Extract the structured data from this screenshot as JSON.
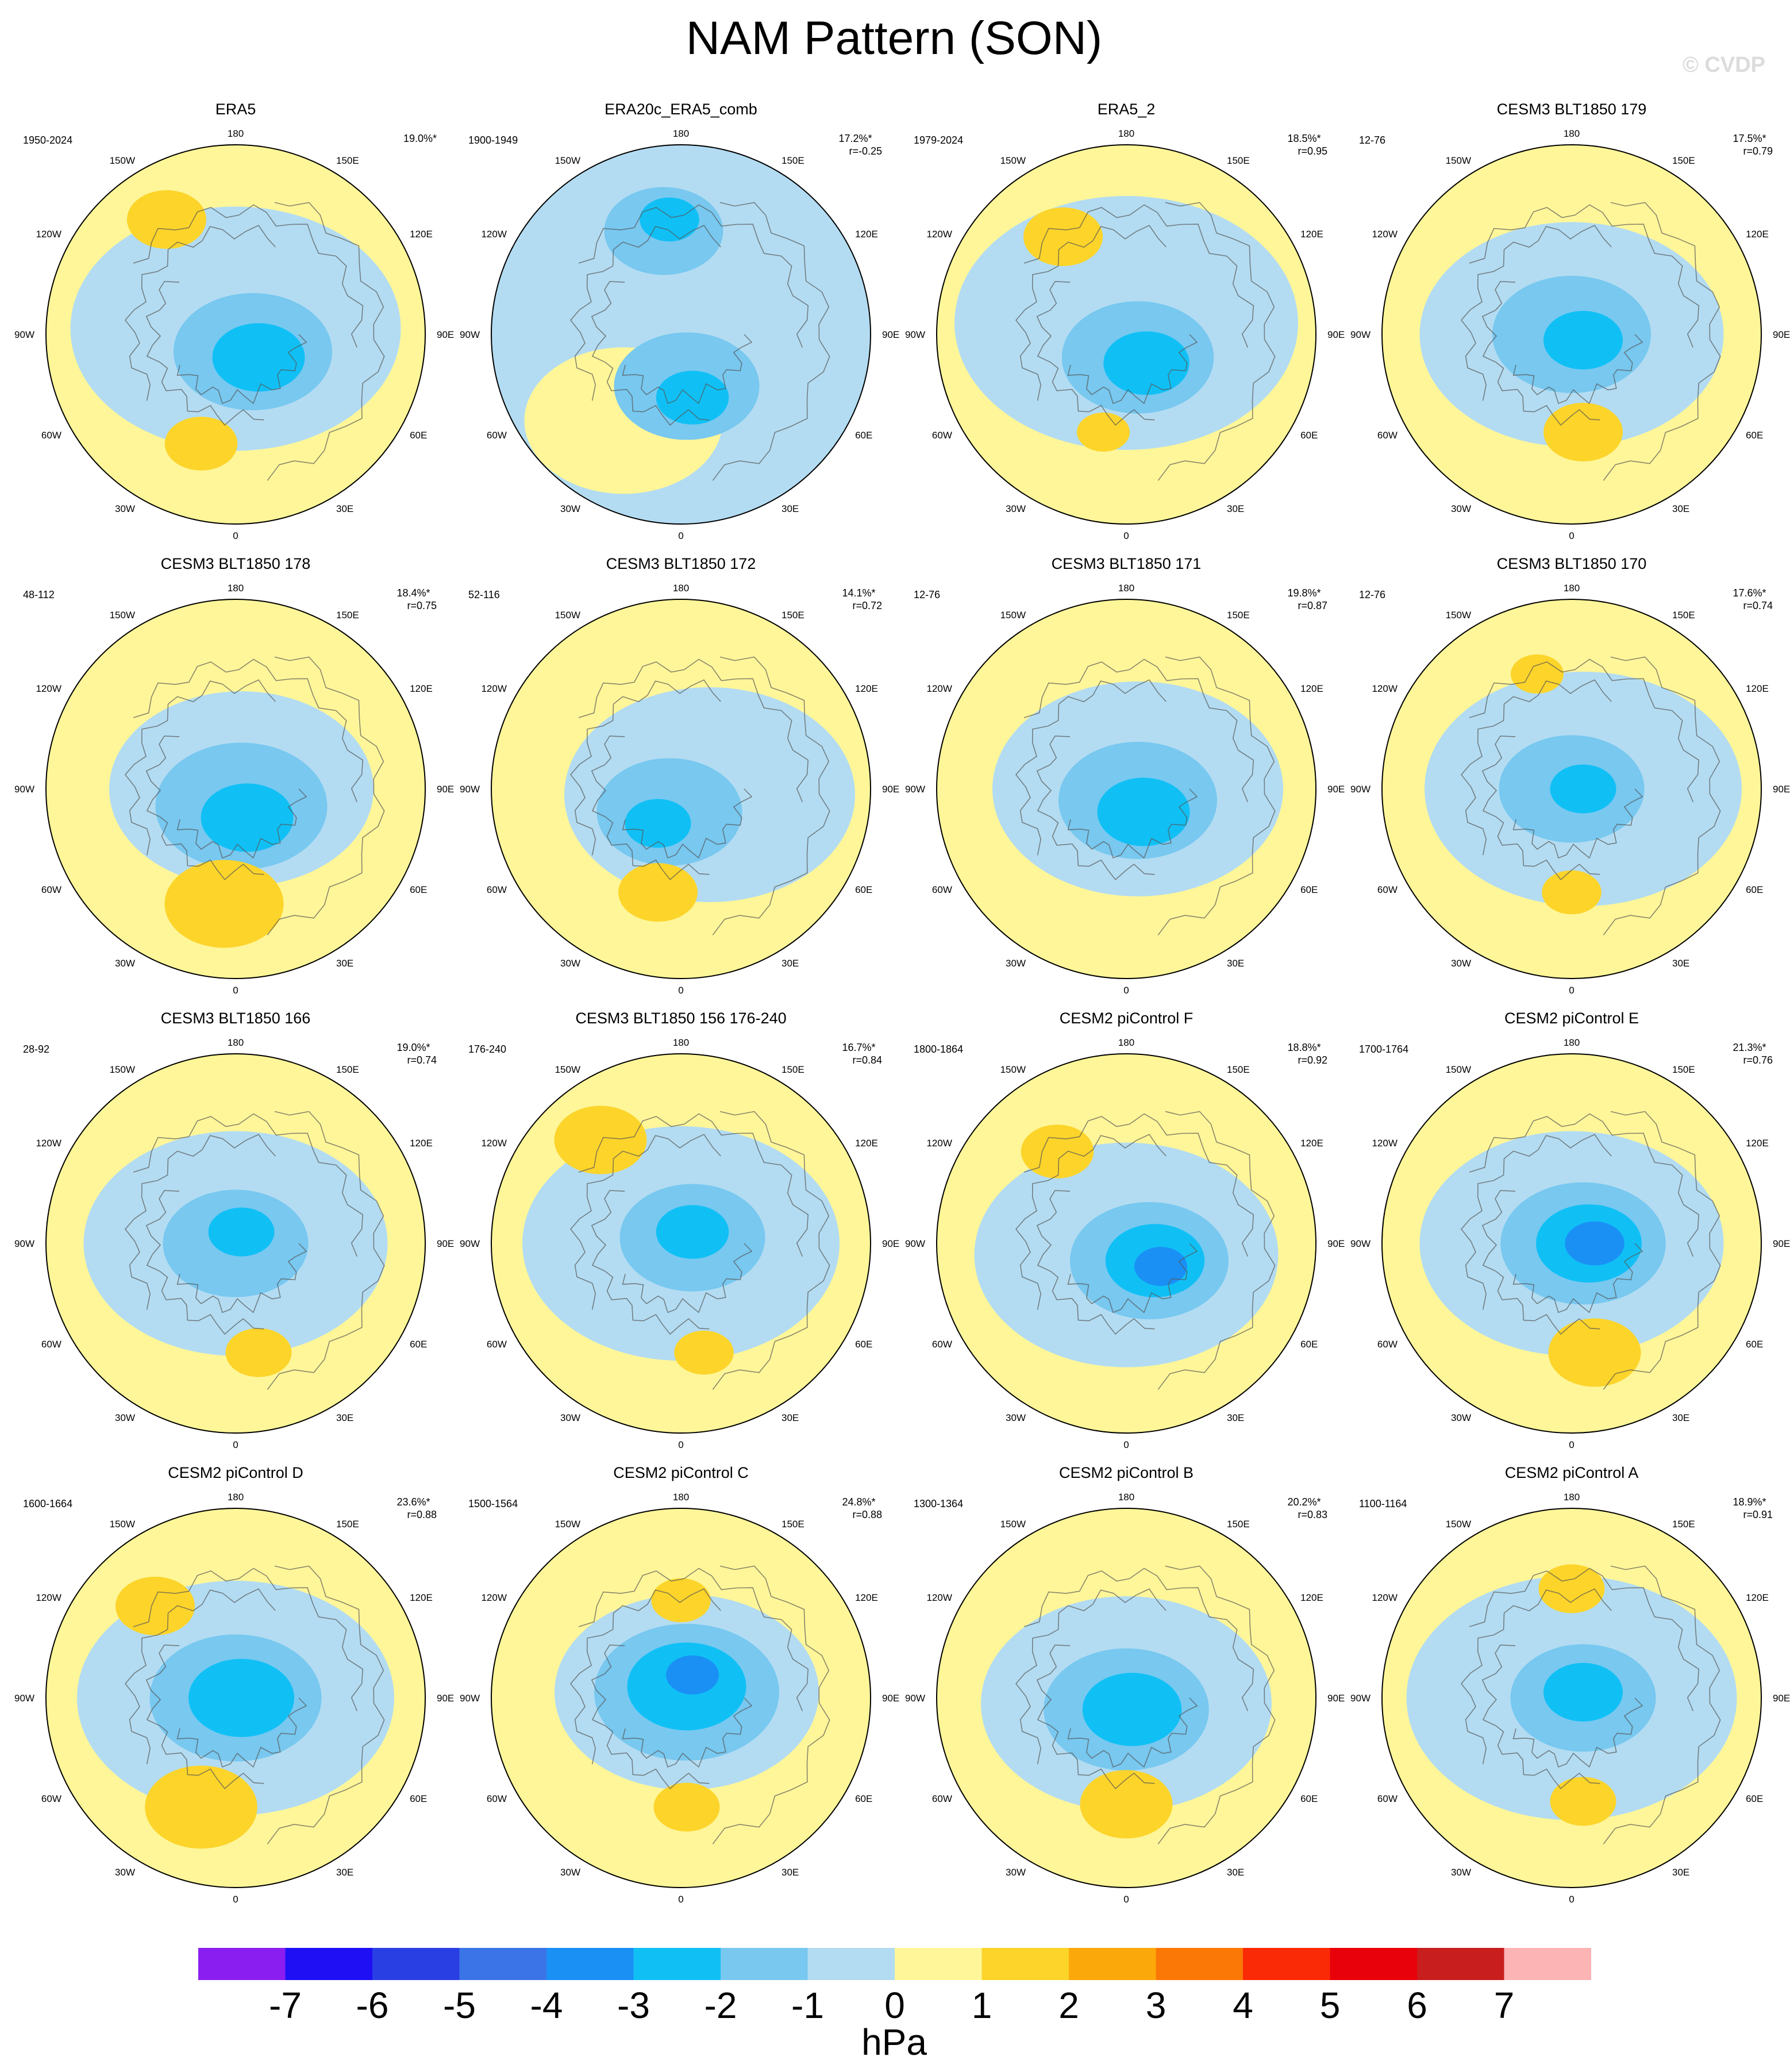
{
  "title": "NAM Pattern (SON)",
  "watermark": "© CVDP",
  "lon_labels": [
    "180",
    "150E",
    "120E",
    "90E",
    "60E",
    "30E",
    "0",
    "30W",
    "60W",
    "90W",
    "120W",
    "150W"
  ],
  "panels": [
    {
      "title": "ERA5",
      "period": "1950-2024",
      "pct": "19.0%*",
      "r": ""
    },
    {
      "title": "ERA20c_ERA5_comb",
      "period": "1900-1949",
      "pct": "17.2%*",
      "r": "r=-0.25"
    },
    {
      "title": "ERA5_2",
      "period": "1979-2024",
      "pct": "18.5%*",
      "r": "r=0.95"
    },
    {
      "title": "CESM3 BLT1850 179",
      "period": "12-76",
      "pct": "17.5%*",
      "r": "r=0.79"
    },
    {
      "title": "CESM3 BLT1850 178",
      "period": "48-112",
      "pct": "18.4%*",
      "r": "r=0.75"
    },
    {
      "title": "CESM3 BLT1850 172",
      "period": "52-116",
      "pct": "14.1%*",
      "r": "r=0.72"
    },
    {
      "title": "CESM3 BLT1850 171",
      "period": "12-76",
      "pct": "19.8%*",
      "r": "r=0.87"
    },
    {
      "title": "CESM3 BLT1850 170",
      "period": "12-76",
      "pct": "17.6%*",
      "r": "r=0.74"
    },
    {
      "title": "CESM3 BLT1850 166",
      "period": "28-92",
      "pct": "19.0%*",
      "r": "r=0.74"
    },
    {
      "title": "CESM3 BLT1850 156 176-240",
      "period": "176-240",
      "pct": "16.7%*",
      "r": "r=0.84"
    },
    {
      "title": "CESM2 piControl F",
      "period": "1800-1864",
      "pct": "18.8%*",
      "r": "r=0.92"
    },
    {
      "title": "CESM2 piControl E",
      "period": "1700-1764",
      "pct": "21.3%*",
      "r": "r=0.76"
    },
    {
      "title": "CESM2 piControl D",
      "period": "1600-1664",
      "pct": "23.6%*",
      "r": "r=0.88"
    },
    {
      "title": "CESM2 piControl C",
      "period": "1500-1564",
      "pct": "24.8%*",
      "r": "r=0.88"
    },
    {
      "title": "CESM2 piControl B",
      "period": "1300-1364",
      "pct": "20.2%*",
      "r": "r=0.83"
    },
    {
      "title": "CESM2 piControl A",
      "period": "1100-1164",
      "pct": "18.9%*",
      "r": "r=0.91"
    }
  ],
  "colorbar": {
    "units": "hPa",
    "ticks": [
      "-7",
      "-6",
      "-5",
      "-4",
      "-3",
      "-2",
      "-1",
      "0",
      "1",
      "2",
      "3",
      "4",
      "5",
      "6",
      "7"
    ],
    "colors": [
      "#8a1ef0",
      "#1e0ff5",
      "#2a3fe3",
      "#3a74e6",
      "#1a90f5",
      "#10c0f5",
      "#78c8f0",
      "#b3dcf2",
      "#fff699",
      "#fcd42a",
      "#fba90a",
      "#fb7806",
      "#fb2a06",
      "#e8000a",
      "#c81e1e",
      "#fcb4b4"
    ]
  }
}
